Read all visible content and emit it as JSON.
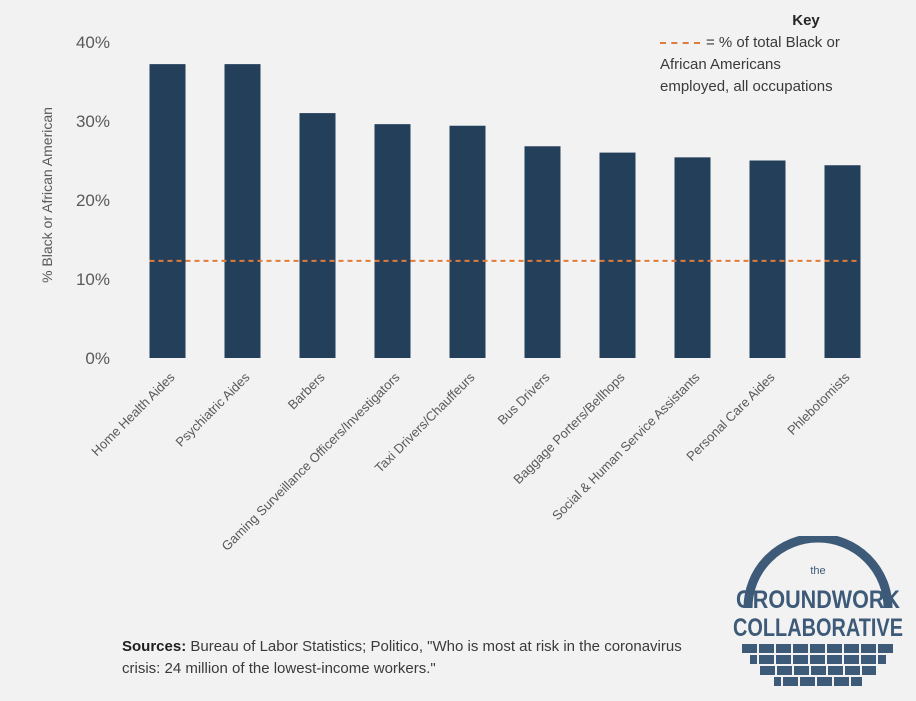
{
  "chart_data": {
    "type": "bar",
    "categories": [
      "Home Health Aides",
      "Psychiatric Aides",
      "Barbers",
      "Gaming Surveillance Officers/Investigators",
      "Taxi Drivers/Chauffeurs",
      "Bus Drivers",
      "Baggage Porters/Bellhops",
      "Social & Human Service Assistants",
      "Personal Care Aides",
      "Phlebotomists"
    ],
    "values": [
      37.2,
      37.2,
      31.0,
      29.6,
      29.4,
      26.8,
      26.0,
      25.4,
      25.0,
      24.4
    ],
    "ylabel": "% Black or African American",
    "ylim": [
      0,
      40
    ],
    "yticks": [
      0,
      10,
      20,
      30,
      40
    ],
    "ytick_labels": [
      "0%",
      "10%",
      "20%",
      "30%",
      "40%"
    ],
    "reference_line": {
      "value": 12.3,
      "style": "dashed"
    },
    "grid": false,
    "bar_color": "#243f5a",
    "reference_color": "#e07b39"
  },
  "key": {
    "title": "Key",
    "dash_text": "= % of total Black or",
    "line2": "African Americans",
    "line3": "employed, all occupations"
  },
  "sources": {
    "label": "Sources:",
    "text": " Bureau of Labor Statistics; Politico, \"Who is most at risk in the coronavirus crisis: 24 million of the lowest-income workers.\""
  },
  "logo": {
    "small": "the",
    "line1": "GROUNDWORK",
    "line2": "COLLABORATIVE",
    "color": "#3d5a78"
  }
}
